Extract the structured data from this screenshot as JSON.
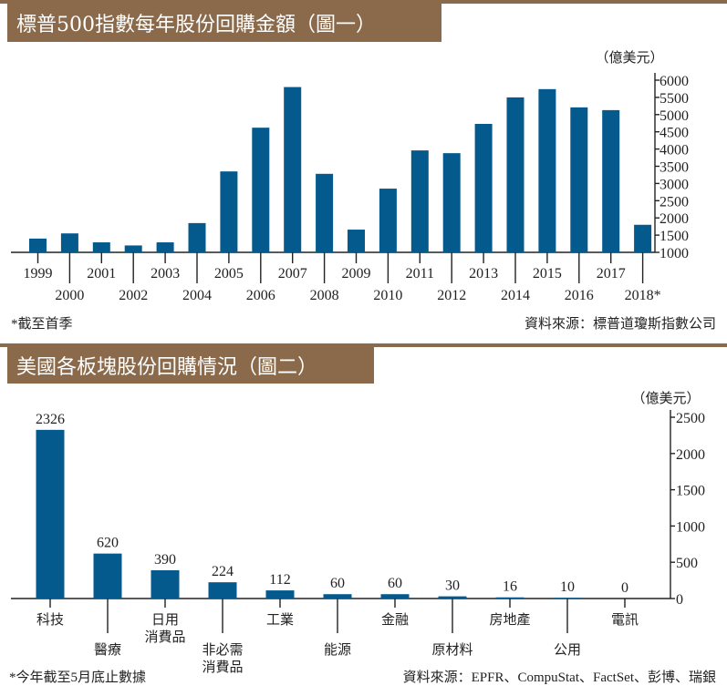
{
  "colors": {
    "bar": "#045a8d",
    "header": "#8a6a4b"
  },
  "chart_data": [
    {
      "type": "bar",
      "title": "標普500指數每年股份回購金額（圖一）",
      "unit": "（億美元）",
      "categories": [
        "1999",
        "2000",
        "2001",
        "2002",
        "2003",
        "2004",
        "2005",
        "2006",
        "2007",
        "2008",
        "2009",
        "2010",
        "2011",
        "2012",
        "2013",
        "2014",
        "2015",
        "2016",
        "2017",
        "2018*"
      ],
      "values": [
        1400,
        1550,
        1290,
        1200,
        1290,
        1850,
        3350,
        4620,
        5800,
        3280,
        1660,
        2850,
        3960,
        3880,
        4730,
        5500,
        5740,
        5210,
        5130,
        1800
      ],
      "ylim": [
        1000,
        6000
      ],
      "yticks": [
        "1000",
        "1500",
        "2000",
        "2500",
        "3000",
        "3500",
        "4000",
        "4500",
        "5000",
        "5500",
        "6000"
      ],
      "note": "*截至首季",
      "source": "資料來源：標普道瓊斯指數公司"
    },
    {
      "type": "bar",
      "title": "美國各板塊股份回購情況（圖二）",
      "unit": "（億美元）",
      "categories": [
        "科技",
        "醫療",
        "日用\n消費品",
        "非必需\n消費品",
        "工業",
        "能源",
        "金融",
        "原材料",
        "房地產",
        "公用",
        "電訊"
      ],
      "values": [
        2326,
        620,
        390,
        224,
        112,
        60,
        60,
        30,
        16,
        10,
        0
      ],
      "labels": [
        "2326",
        "620",
        "390",
        "224",
        "112",
        "60",
        "60",
        "30",
        "16",
        "10",
        "0"
      ],
      "ylim": [
        0,
        2500
      ],
      "yticks": [
        "0",
        "500",
        "1000",
        "1500",
        "2000",
        "2500"
      ],
      "note": "*今年截至5月底止數據",
      "source": "資料來源：EPFR、CompuStat、FactSet、彭博、瑞銀"
    }
  ]
}
